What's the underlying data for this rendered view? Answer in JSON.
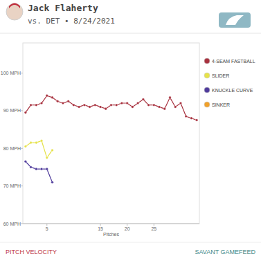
{
  "chart_data": {
    "type": "line",
    "title": "Jack Flaherty",
    "subtitle": "vs. DET • 8/24/2021",
    "x_label": "Pitches",
    "footer_left": "PITCH VELOCITY",
    "footer_right": "SAVANT GAMEFEED",
    "xlim": [
      0.5,
      33.5
    ],
    "xticks": [
      5,
      15,
      20,
      25
    ],
    "ylim": [
      60,
      108
    ],
    "yticks": [
      {
        "value": 60,
        "label": "60 MPH"
      },
      {
        "value": 70,
        "label": "70 MPH"
      },
      {
        "value": 80,
        "label": "80 MPH"
      },
      {
        "value": 90,
        "label": "90 MPH"
      },
      {
        "value": 100,
        "label": "100 MPH"
      }
    ],
    "grid": false,
    "legend": "right",
    "marker": "circle",
    "line_style": "solid",
    "series": [
      {
        "name": "4-SEAM FASTBALL",
        "color": "#a8323f",
        "x": [
          1,
          2,
          3,
          4,
          5,
          6,
          7,
          8,
          9,
          10,
          11,
          12,
          13,
          14,
          15,
          16,
          17,
          18,
          19,
          20,
          21,
          22,
          23,
          24,
          25,
          26,
          27,
          28,
          29,
          30,
          31,
          32,
          33
        ],
        "values": [
          89.5,
          91.5,
          91.5,
          92,
          94,
          93.5,
          92.5,
          92,
          92.5,
          91.5,
          91,
          91.5,
          91,
          91.5,
          91,
          90.5,
          91.5,
          91.5,
          92,
          92,
          91,
          92,
          93,
          91.5,
          91.5,
          91,
          90.5,
          93.5,
          91,
          92,
          88.5,
          88,
          87.5
        ]
      },
      {
        "name": "SLIDER",
        "color": "#e6e24a",
        "x": [
          1,
          2,
          3,
          4,
          5,
          6
        ],
        "values": [
          80.5,
          81.5,
          81.5,
          82,
          77.5,
          79.5
        ]
      },
      {
        "name": "KNUCKLE CURVE",
        "color": "#503c9c",
        "x": [
          1,
          2,
          3,
          4,
          5,
          6
        ],
        "values": [
          76.5,
          75,
          74.5,
          74.5,
          74.5,
          71
        ]
      },
      {
        "name": "SINKER",
        "color": "#f0a12b",
        "x": [],
        "values": []
      }
    ]
  }
}
